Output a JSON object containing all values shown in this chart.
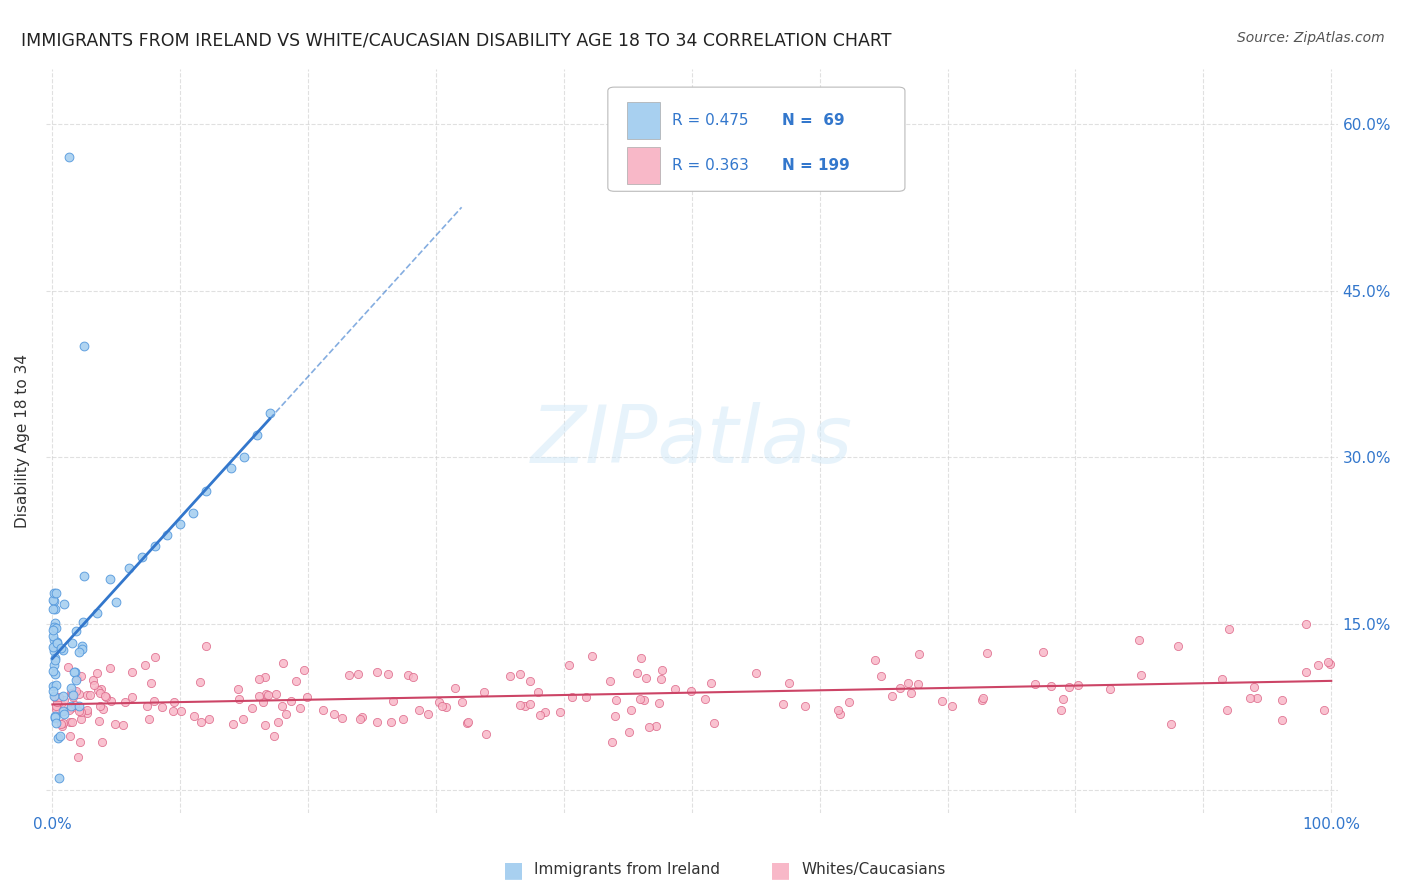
{
  "title": "IMMIGRANTS FROM IRELAND VS WHITE/CAUCASIAN DISABILITY AGE 18 TO 34 CORRELATION CHART",
  "source": "Source: ZipAtlas.com",
  "ylabel": "Disability Age 18 to 34",
  "xlim": [
    -0.005,
    1.005
  ],
  "ylim": [
    -0.02,
    0.65
  ],
  "xticks": [
    0.0,
    0.1,
    0.2,
    0.3,
    0.4,
    0.5,
    0.6,
    0.7,
    0.8,
    0.9,
    1.0
  ],
  "yticks": [
    0.0,
    0.15,
    0.3,
    0.45,
    0.6
  ],
  "color_ireland_fill": "#a8d0f0",
  "color_ireland_edge": "#5599dd",
  "color_white_fill": "#f8b8c8",
  "color_white_edge": "#dd6688",
  "color_ireland_line": "#3377cc",
  "color_white_line": "#cc4466",
  "color_legend_text_blue": "#3377cc",
  "watermark_color": "#d0e8f8",
  "figsize": [
    14.06,
    8.92
  ],
  "dpi": 100,
  "bg": "#ffffff",
  "grid_color": "#cccccc",
  "title_color": "#222222",
  "ylabel_color": "#333333",
  "tick_color": "#3377cc"
}
